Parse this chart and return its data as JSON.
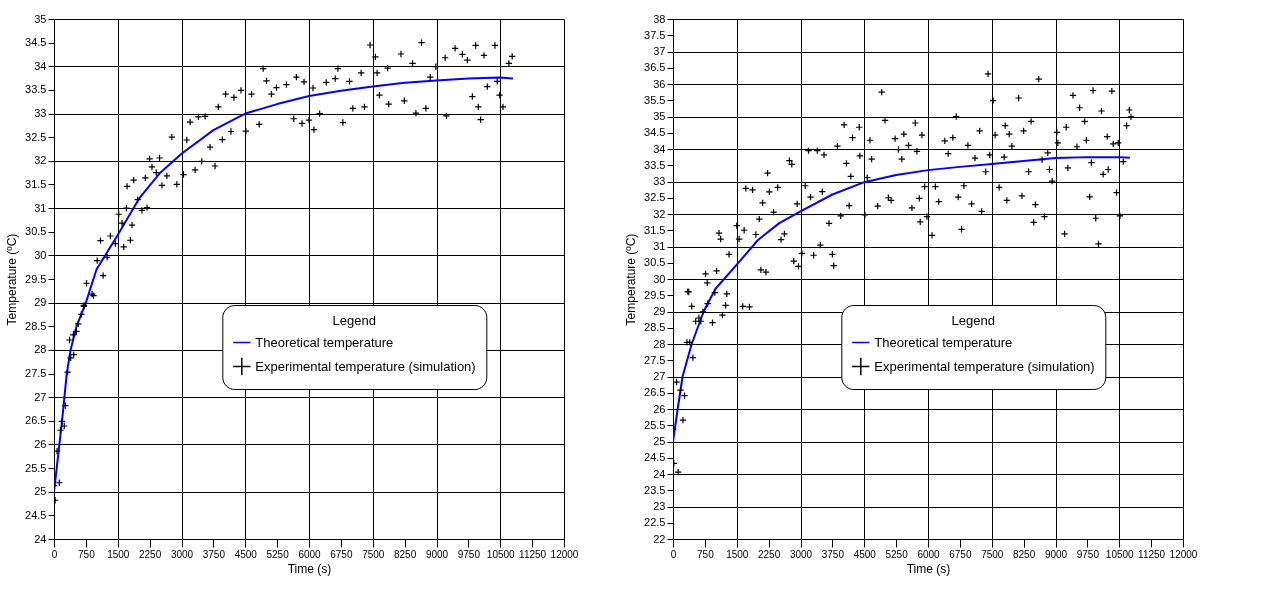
{
  "chart_data": [
    {
      "type": "scatter",
      "xlabel": "Time (s)",
      "ylabel": "Temperature (ºC)",
      "legend_title": "Legend",
      "legend": "right",
      "grid": true,
      "xlim": [
        0,
        12000
      ],
      "xticks": [
        0,
        750,
        1500,
        2250,
        3000,
        3750,
        4500,
        5250,
        6000,
        6750,
        7500,
        8250,
        9000,
        9750,
        10500,
        11250,
        12000
      ],
      "ylim": [
        24,
        35
      ],
      "yticks": [
        24,
        24.5,
        25,
        25.5,
        26,
        26.5,
        27,
        27.5,
        28,
        28.5,
        29,
        29.5,
        30,
        30.5,
        31,
        31.5,
        32,
        32.5,
        33,
        33.5,
        34,
        34.5,
        35
      ],
      "series": [
        {
          "name": "Theoretical temperature",
          "type": "line",
          "color": "#0000ff",
          "x": [
            0,
            190,
            300,
            390,
            530,
            750,
            1000,
            1500,
            2000,
            2500,
            3000,
            3750,
            4500,
            5250,
            6000,
            6750,
            7500,
            8250,
            9000,
            9750,
            10500,
            10800
          ],
          "values": [
            25,
            26.5,
            27.5,
            28,
            28.5,
            29.0,
            29.7,
            30.43,
            31.2,
            31.75,
            32.15,
            32.65,
            33.0,
            33.2,
            33.37,
            33.48,
            33.57,
            33.65,
            33.7,
            33.74,
            33.76,
            33.74
          ]
        },
        {
          "name": "Experimental temperature (simulation)",
          "type": "scatter",
          "marker": "cross",
          "color": "#000000",
          "x": [
            0,
            27,
            71,
            125,
            152,
            188,
            241,
            268,
            321,
            366,
            393,
            455,
            464,
            527,
            571,
            643,
            705,
            929,
            703,
            766,
            898,
            1094,
            1016,
            1156,
            1250,
            1328,
            1445,
            1523,
            1602,
            1641,
            1797,
            1836,
            1703,
            1719,
            1875,
            1969,
            2070,
            2188,
            2148,
            2250,
            2484,
            2305,
            2406,
            2539,
            2656,
            2773,
            2891,
            3047,
            3125,
            3203,
            3398,
            3555,
            3320,
            3477,
            3789,
            3672,
            3961,
            3867,
            4039,
            4164,
            4234,
            4398,
            4516,
            4648,
            4828,
            4922,
            5000,
            5117,
            5234,
            5469,
            5703,
            5641,
            5836,
            5883,
            6000,
            6117,
            6094,
            6250,
            6406,
            6617,
            6680,
            6797,
            6953,
            7031,
            7227,
            7305,
            7438,
            7563,
            7602,
            7656,
            7875,
            7852,
            8164,
            8242,
            8438,
            8516,
            8648,
            8750,
            8852,
            8984,
            9234,
            9203,
            9438,
            9609,
            9727,
            9844,
            9984,
            10039,
            9922,
            10117,
            10195,
            10375,
            10484,
            10563,
            10430,
            10703,
            10781
          ],
          "values": [
            25.13,
            24.82,
            25.86,
            25.19,
            26.3,
            26.49,
            26.39,
            26.82,
            27.53,
            28.21,
            27.83,
            28.32,
            27.9,
            28.39,
            28.55,
            28.75,
            28.92,
            29.15,
            28.94,
            29.41,
            29.18,
            30.31,
            29.89,
            29.57,
            29.96,
            30.41,
            30.25,
            30.87,
            30.68,
            30.18,
            30.32,
            30.64,
            31.0,
            31.46,
            31.59,
            31.18,
            30.95,
            31.01,
            31.64,
            32.04,
            32.06,
            31.87,
            31.75,
            31.48,
            31.68,
            32.5,
            31.5,
            31.71,
            32.44,
            32.82,
            32.93,
            32.94,
            31.81,
            31.99,
            31.89,
            32.29,
            32.45,
            33.14,
            33.41,
            32.62,
            33.34,
            33.49,
            32.63,
            33.41,
            32.77,
            33.95,
            33.69,
            33.41,
            33.55,
            33.61,
            33.77,
            32.89,
            32.79,
            33.67,
            32.86,
            32.66,
            33.54,
            33.0,
            33.66,
            33.74,
            33.95,
            32.81,
            33.68,
            33.11,
            33.86,
            33.14,
            34.45,
            34.2,
            33.86,
            33.39,
            33.2,
            33.96,
            34.26,
            33.27,
            34.06,
            33.01,
            34.5,
            33.11,
            33.77,
            33.99,
            32.95,
            34.18,
            34.38,
            34.25,
            34.13,
            33.36,
            33.14,
            32.87,
            34.44,
            34.23,
            33.57,
            34.44,
            33.39,
            33.14,
            33.68,
            34.06,
            34.21
          ]
        }
      ]
    },
    {
      "type": "scatter",
      "xlabel": "Time (s)",
      "ylabel": "Temperature (ºC)",
      "legend_title": "Legend",
      "legend": "right",
      "grid": true,
      "xlim": [
        0,
        12000
      ],
      "xticks": [
        0,
        750,
        1500,
        2250,
        3000,
        3750,
        4500,
        5250,
        6000,
        6750,
        7500,
        8250,
        9000,
        9750,
        10500,
        11250,
        12000
      ],
      "ylim": [
        22,
        38
      ],
      "yticks": [
        22,
        22.5,
        23,
        23.5,
        24,
        24.5,
        25,
        25.5,
        26,
        26.5,
        27,
        27.5,
        28,
        28.5,
        29,
        29.5,
        30,
        30.5,
        31,
        31.5,
        32,
        32.5,
        33,
        33.5,
        34,
        34.5,
        35,
        35.5,
        36,
        36.5,
        37,
        37.5,
        38
      ],
      "series": [
        {
          "name": "Theoretical temperature",
          "type": "line",
          "color": "#0000ff",
          "x": [
            0,
            110,
            225,
            440,
            720,
            1000,
            1500,
            2000,
            2500,
            3000,
            3750,
            4500,
            5250,
            6000,
            6750,
            7500,
            8250,
            9000,
            9750,
            10500,
            10750
          ],
          "values": [
            25,
            26,
            27,
            28,
            29,
            29.7,
            30.44,
            31.2,
            31.72,
            32.08,
            32.6,
            32.98,
            33.2,
            33.35,
            33.45,
            33.54,
            33.63,
            33.72,
            33.75,
            33.75,
            33.73
          ]
        },
        {
          "name": "Experimental temperature (simulation)",
          "type": "scatter",
          "marker": "cross",
          "color": "#000000",
          "x": [
            19,
            122,
            0,
            234,
            84,
            178,
            272,
            328,
            394,
            469,
            534,
            609,
            703,
            656,
            816,
            928,
            984,
            347,
            441,
            1163,
            1238,
            1266,
            1641,
            1800,
            371,
            766,
            805,
            1026,
            1082,
            1121,
            1318,
            1500,
            1555,
            1674,
            1713,
            1871,
            1950,
            2029,
            2108,
            2068,
            2187,
            2226,
            2266,
            2368,
            2463,
            2542,
            2621,
            2739,
            2795,
            2842,
            2921,
            2953,
            3032,
            3111,
            3189,
            3237,
            3395,
            3308,
            3466,
            3513,
            3553,
            3671,
            3750,
            3782,
            3868,
            3947,
            4026,
            4082,
            4184,
            4224,
            4145,
            4382,
            4397,
            4516,
            4571,
            4634,
            4674,
            4816,
            4911,
            4989,
            5068,
            5132,
            5226,
            5305,
            5384,
            5432,
            5542,
            5621,
            5700,
            5740,
            5795,
            5818,
            5858,
            5921,
            5976,
            6095,
            6174,
            6253,
            6395,
            6474,
            6584,
            6663,
            6711,
            6789,
            6845,
            6939,
            7026,
            7105,
            7216,
            7263,
            7358,
            7413,
            7453,
            7532,
            7579,
            7674,
            7792,
            7816,
            7855,
            7911,
            7974,
            8132,
            8211,
            8250,
            8368,
            8426,
            8487,
            8526,
            8605,
            8684,
            8739,
            8818,
            8858,
            8921,
            9032,
            9055,
            9213,
            9253,
            9292,
            9411,
            9505,
            9568,
            9687,
            9726,
            9805,
            9845,
            9884,
            9947,
            10011,
            10082,
            10121,
            10216,
            10239,
            10326,
            10358,
            10437,
            10476,
            10516,
            10595,
            10674,
            10737,
            10776
          ],
          "values": [
            24.33,
            24.06,
            25.39,
            25.66,
            26.83,
            26.58,
            26.41,
            28.05,
            28.05,
            27.58,
            28.7,
            28.8,
            28.99,
            28.7,
            29.24,
            28.66,
            29.58,
            29.61,
            29.16,
            28.89,
            29.19,
            29.54,
            29.16,
            29.14,
            29.6,
            30.16,
            29.88,
            30.25,
            31.41,
            31.23,
            30.76,
            31.64,
            31.23,
            31.5,
            32.79,
            32.74,
            31.37,
            31.84,
            32.34,
            30.28,
            30.21,
            33.26,
            32.68,
            32.06,
            32.82,
            31.21,
            31.39,
            33.64,
            33.53,
            30.55,
            32.31,
            30.39,
            30.79,
            32.87,
            33.95,
            32.52,
            33.95,
            30.73,
            31.04,
            32.69,
            33.82,
            31.71,
            30.76,
            30.41,
            34.09,
            31.94,
            34.74,
            33.56,
            33.16,
            34.35,
            32.26,
            34.67,
            33.79,
            31.97,
            33.12,
            34.27,
            33.69,
            32.24,
            35.75,
            34.88,
            32.5,
            32.42,
            34.32,
            33.98,
            33.69,
            34.46,
            34.11,
            32.19,
            34.8,
            33.93,
            32.48,
            31.76,
            34.43,
            32.84,
            31.92,
            31.34,
            32.84,
            32.38,
            34.25,
            33.86,
            34.35,
            35.0,
            32.52,
            31.53,
            32.87,
            34.11,
            32.31,
            33.72,
            34.56,
            32.08,
            33.3,
            36.31,
            33.82,
            35.49,
            34.43,
            32.82,
            33.75,
            34.72,
            32.42,
            34.46,
            34.09,
            35.57,
            32.56,
            34.56,
            33.3,
            34.85,
            31.74,
            32.29,
            36.15,
            33.67,
            31.92,
            33.88,
            33.37,
            33.01,
            34.51,
            34.19,
            31.39,
            34.67,
            33.42,
            35.65,
            34.07,
            35.27,
            34.85,
            34.27,
            32.53,
            33.58,
            35.8,
            31.87,
            31.08,
            35.17,
            33.22,
            34.38,
            33.37,
            35.78,
            34.16,
            32.66,
            34.19,
            31.94,
            33.61,
            34.72,
            35.2,
            34.99
          ]
        }
      ]
    }
  ]
}
